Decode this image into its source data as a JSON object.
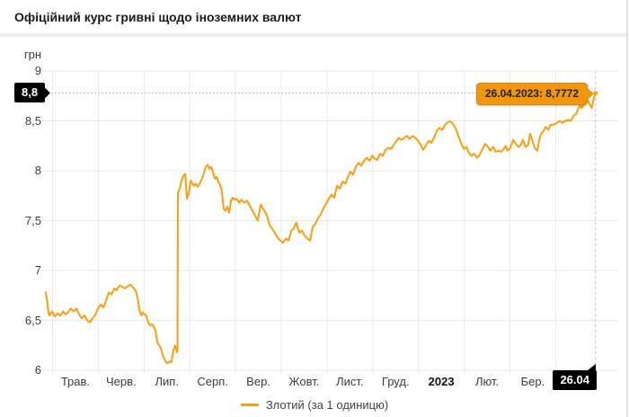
{
  "header": {
    "title": "Офіційний курс гривні щодо іноземних валют"
  },
  "colors": {
    "line": "#ff9e0d",
    "tooltip_bg": "#f0970e",
    "badge_bg": "#000000",
    "grid": "#e9e9e9",
    "dashed_h": "#9c9c9c",
    "dashed_v": "#c2c2c2",
    "axis_text": "#3c3c3c"
  },
  "y_axis": {
    "unit_label": "грн",
    "ticks": [
      "9",
      "8,5",
      "8",
      "7,5",
      "7",
      "6,5",
      "6"
    ],
    "tick_values": [
      9,
      8.5,
      8,
      7.5,
      7,
      6.5,
      6
    ],
    "badge": {
      "label": "8,8",
      "value": 8.7772
    }
  },
  "x_axis": {
    "labels": [
      {
        "text": "Трав.",
        "bold": false
      },
      {
        "text": "Черв.",
        "bold": false
      },
      {
        "text": "Лип.",
        "bold": false
      },
      {
        "text": "Серп.",
        "bold": false
      },
      {
        "text": "Вер.",
        "bold": false
      },
      {
        "text": "Жовт.",
        "bold": false
      },
      {
        "text": "Лист.",
        "bold": false
      },
      {
        "text": "Груд.",
        "bold": false
      },
      {
        "text": "2023",
        "bold": true
      },
      {
        "text": "Лют.",
        "bold": false
      },
      {
        "text": "Бер.",
        "bold": false
      }
    ],
    "badge": "26.04"
  },
  "tooltip": {
    "text": "26.04.2023: 8,7772"
  },
  "legend": {
    "label": "Злотий (за 1 одиницю)"
  },
  "chart_data": {
    "type": "line",
    "title": "Офіційний курс гривні щодо іноземних валют",
    "ylabel": "грн",
    "ylim": [
      6,
      9
    ],
    "xlim": [
      -0.15,
      11.87
    ],
    "x_unit": "months since 2022-05-01 (0 = Трав. 2022, 11.87 = 26.04.2023)",
    "x_tick_labels": [
      "Трав.",
      "Черв.",
      "Лип.",
      "Серп.",
      "Вер.",
      "Жовт.",
      "Лист.",
      "Груд.",
      "2023",
      "Лют.",
      "Бер."
    ],
    "grid": true,
    "legend_position": "bottom",
    "last_point": {
      "date": "26.04.2023",
      "value": 8.7772
    },
    "reference_value_badge": 8.8,
    "series": [
      {
        "name": "Злотий (за 1 одиницю)",
        "points": [
          [
            -0.15,
            6.78
          ],
          [
            -0.12,
            6.7
          ],
          [
            -0.09,
            6.58
          ],
          [
            -0.07,
            6.55
          ],
          [
            -0.01,
            6.59
          ],
          [
            0.05,
            6.54
          ],
          [
            0.11,
            6.57
          ],
          [
            0.17,
            6.55
          ],
          [
            0.23,
            6.59
          ],
          [
            0.28,
            6.56
          ],
          [
            0.34,
            6.58
          ],
          [
            0.4,
            6.62
          ],
          [
            0.46,
            6.59
          ],
          [
            0.52,
            6.62
          ],
          [
            0.58,
            6.56
          ],
          [
            0.64,
            6.52
          ],
          [
            0.7,
            6.55
          ],
          [
            0.76,
            6.5
          ],
          [
            0.82,
            6.48
          ],
          [
            0.87,
            6.52
          ],
          [
            0.93,
            6.55
          ],
          [
            0.99,
            6.62
          ],
          [
            1.05,
            6.66
          ],
          [
            1.11,
            6.63
          ],
          [
            1.17,
            6.7
          ],
          [
            1.23,
            6.78
          ],
          [
            1.29,
            6.76
          ],
          [
            1.35,
            6.82
          ],
          [
            1.4,
            6.8
          ],
          [
            1.46,
            6.85
          ],
          [
            1.52,
            6.84
          ],
          [
            1.58,
            6.82
          ],
          [
            1.64,
            6.84
          ],
          [
            1.7,
            6.86
          ],
          [
            1.76,
            6.83
          ],
          [
            1.82,
            6.8
          ],
          [
            1.86,
            6.72
          ],
          [
            1.9,
            6.6
          ],
          [
            1.94,
            6.55
          ],
          [
            1.97,
            6.58
          ],
          [
            2.01,
            6.56
          ],
          [
            2.05,
            6.55
          ],
          [
            2.09,
            6.48
          ],
          [
            2.13,
            6.45
          ],
          [
            2.17,
            6.46
          ],
          [
            2.21,
            6.44
          ],
          [
            2.25,
            6.4
          ],
          [
            2.29,
            6.28
          ],
          [
            2.33,
            6.25
          ],
          [
            2.37,
            6.22
          ],
          [
            2.41,
            6.15
          ],
          [
            2.44,
            6.12
          ],
          [
            2.48,
            6.08
          ],
          [
            2.52,
            6.07
          ],
          [
            2.56,
            6.09
          ],
          [
            2.6,
            6.08
          ],
          [
            2.64,
            6.2
          ],
          [
            2.68,
            6.25
          ],
          [
            2.7,
            6.22
          ],
          [
            2.72,
            6.18
          ],
          [
            2.73,
            6.2
          ],
          [
            2.74,
            7.78
          ],
          [
            2.78,
            7.82
          ],
          [
            2.82,
            7.9
          ],
          [
            2.86,
            7.95
          ],
          [
            2.9,
            7.97
          ],
          [
            2.94,
            7.72
          ],
          [
            2.98,
            7.78
          ],
          [
            3.02,
            7.9
          ],
          [
            3.05,
            7.88
          ],
          [
            3.09,
            7.85
          ],
          [
            3.13,
            7.87
          ],
          [
            3.17,
            7.84
          ],
          [
            3.23,
            7.88
          ],
          [
            3.29,
            7.95
          ],
          [
            3.35,
            8.04
          ],
          [
            3.39,
            8.06
          ],
          [
            3.43,
            8.02
          ],
          [
            3.47,
            8.04
          ],
          [
            3.51,
            7.98
          ],
          [
            3.55,
            7.92
          ],
          [
            3.59,
            7.94
          ],
          [
            3.63,
            7.88
          ],
          [
            3.66,
            7.86
          ],
          [
            3.7,
            7.8
          ],
          [
            3.74,
            7.62
          ],
          [
            3.78,
            7.6
          ],
          [
            3.82,
            7.64
          ],
          [
            3.86,
            7.58
          ],
          [
            3.9,
            7.7
          ],
          [
            3.94,
            7.73
          ],
          [
            3.98,
            7.71
          ],
          [
            4.02,
            7.72
          ],
          [
            4.08,
            7.68
          ],
          [
            4.13,
            7.71
          ],
          [
            4.19,
            7.68
          ],
          [
            4.25,
            7.7
          ],
          [
            4.31,
            7.65
          ],
          [
            4.37,
            7.6
          ],
          [
            4.43,
            7.55
          ],
          [
            4.49,
            7.5
          ],
          [
            4.55,
            7.66
          ],
          [
            4.59,
            7.63
          ],
          [
            4.63,
            7.6
          ],
          [
            4.69,
            7.55
          ],
          [
            4.74,
            7.46
          ],
          [
            4.8,
            7.42
          ],
          [
            4.86,
            7.38
          ],
          [
            4.92,
            7.33
          ],
          [
            4.98,
            7.3
          ],
          [
            5.04,
            7.28
          ],
          [
            5.1,
            7.32
          ],
          [
            5.16,
            7.3
          ],
          [
            5.22,
            7.4
          ],
          [
            5.27,
            7.42
          ],
          [
            5.33,
            7.48
          ],
          [
            5.39,
            7.38
          ],
          [
            5.45,
            7.4
          ],
          [
            5.51,
            7.35
          ],
          [
            5.57,
            7.32
          ],
          [
            5.63,
            7.3
          ],
          [
            5.69,
            7.44
          ],
          [
            5.75,
            7.47
          ],
          [
            5.81,
            7.53
          ],
          [
            5.86,
            7.56
          ],
          [
            5.92,
            7.62
          ],
          [
            5.98,
            7.67
          ],
          [
            6.04,
            7.72
          ],
          [
            6.1,
            7.76
          ],
          [
            6.16,
            7.73
          ],
          [
            6.22,
            7.85
          ],
          [
            6.28,
            7.82
          ],
          [
            6.34,
            7.89
          ],
          [
            6.4,
            7.87
          ],
          [
            6.46,
            7.94
          ],
          [
            6.51,
            7.99
          ],
          [
            6.57,
            7.96
          ],
          [
            6.63,
            8.04
          ],
          [
            6.69,
            8.08
          ],
          [
            6.75,
            8.05
          ],
          [
            6.81,
            8.1
          ],
          [
            6.87,
            8.13
          ],
          [
            6.93,
            8.1
          ],
          [
            6.99,
            8.15
          ],
          [
            7.05,
            8.12
          ],
          [
            7.1,
            8.11
          ],
          [
            7.16,
            8.17
          ],
          [
            7.22,
            8.15
          ],
          [
            7.28,
            8.21
          ],
          [
            7.34,
            8.23
          ],
          [
            7.4,
            8.22
          ],
          [
            7.46,
            8.26
          ],
          [
            7.52,
            8.3
          ],
          [
            7.57,
            8.33
          ],
          [
            7.63,
            8.31
          ],
          [
            7.69,
            8.33
          ],
          [
            7.75,
            8.35
          ],
          [
            7.81,
            8.32
          ],
          [
            7.87,
            8.35
          ],
          [
            7.93,
            8.33
          ],
          [
            7.99,
            8.3
          ],
          [
            8.05,
            8.26
          ],
          [
            8.1,
            8.21
          ],
          [
            8.16,
            8.25
          ],
          [
            8.22,
            8.3
          ],
          [
            8.28,
            8.28
          ],
          [
            8.34,
            8.33
          ],
          [
            8.4,
            8.4
          ],
          [
            8.46,
            8.43
          ],
          [
            8.52,
            8.41
          ],
          [
            8.58,
            8.46
          ],
          [
            8.63,
            8.48
          ],
          [
            8.69,
            8.5
          ],
          [
            8.75,
            8.47
          ],
          [
            8.81,
            8.43
          ],
          [
            8.87,
            8.35
          ],
          [
            8.93,
            8.28
          ],
          [
            8.99,
            8.22
          ],
          [
            9.05,
            8.24
          ],
          [
            9.1,
            8.18
          ],
          [
            9.16,
            8.15
          ],
          [
            9.22,
            8.17
          ],
          [
            9.28,
            8.13
          ],
          [
            9.34,
            8.16
          ],
          [
            9.4,
            8.22
          ],
          [
            9.46,
            8.27
          ],
          [
            9.52,
            8.24
          ],
          [
            9.57,
            8.2
          ],
          [
            9.63,
            8.24
          ],
          [
            9.69,
            8.19
          ],
          [
            9.75,
            8.2
          ],
          [
            9.81,
            8.19
          ],
          [
            9.87,
            8.22
          ],
          [
            9.91,
            8.25
          ],
          [
            9.95,
            8.2
          ],
          [
            10.01,
            8.23
          ],
          [
            10.07,
            8.31
          ],
          [
            10.13,
            8.27
          ],
          [
            10.19,
            8.24
          ],
          [
            10.24,
            8.26
          ],
          [
            10.28,
            8.31
          ],
          [
            10.34,
            8.24
          ],
          [
            10.4,
            8.26
          ],
          [
            10.44,
            8.37
          ],
          [
            10.48,
            8.32
          ],
          [
            10.54,
            8.23
          ],
          [
            10.6,
            8.2
          ],
          [
            10.64,
            8.31
          ],
          [
            10.68,
            8.37
          ],
          [
            10.74,
            8.4
          ],
          [
            10.78,
            8.44
          ],
          [
            10.84,
            8.41
          ],
          [
            10.88,
            8.46
          ],
          [
            10.93,
            8.46
          ],
          [
            10.99,
            8.47
          ],
          [
            11.03,
            8.48
          ],
          [
            11.09,
            8.5
          ],
          [
            11.15,
            8.48
          ],
          [
            11.21,
            8.5
          ],
          [
            11.27,
            8.51
          ],
          [
            11.33,
            8.5
          ],
          [
            11.39,
            8.55
          ],
          [
            11.45,
            8.57
          ],
          [
            11.49,
            8.62
          ],
          [
            11.53,
            8.65
          ],
          [
            11.57,
            8.63
          ],
          [
            11.63,
            8.67
          ],
          [
            11.67,
            8.69
          ],
          [
            11.71,
            8.7
          ],
          [
            11.75,
            8.66
          ],
          [
            11.79,
            8.63
          ],
          [
            11.83,
            8.72
          ],
          [
            11.87,
            8.7772
          ]
        ]
      }
    ]
  }
}
